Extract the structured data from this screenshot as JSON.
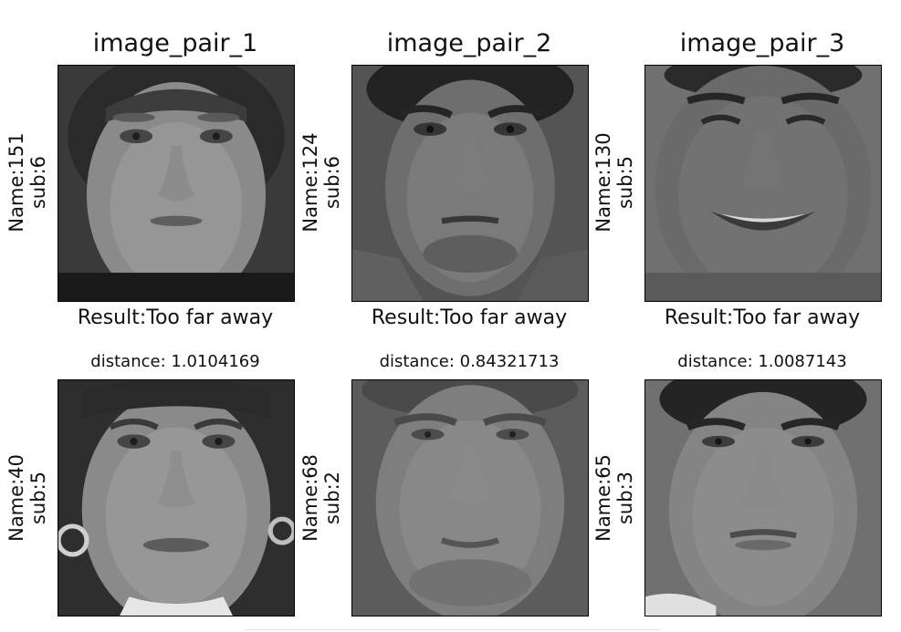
{
  "pairs": [
    {
      "title": "image_pair_1",
      "top": {
        "name": "Name:151",
        "sub": "sub:6",
        "icon": "face-photo-icon"
      },
      "result": "Result:Too far away",
      "distance": "distance: 1.0104169",
      "bottom": {
        "name": "Name:40",
        "sub": "sub:5",
        "icon": "face-photo-icon"
      }
    },
    {
      "title": "image_pair_2",
      "top": {
        "name": "Name:124",
        "sub": "sub:6",
        "icon": "face-photo-icon"
      },
      "result": "Result:Too far away",
      "distance": "distance: 0.84321713",
      "bottom": {
        "name": "Name:68",
        "sub": "sub:2",
        "icon": "face-photo-icon"
      }
    },
    {
      "title": "image_pair_3",
      "top": {
        "name": "Name:130",
        "sub": "sub:5",
        "icon": "face-photo-icon"
      },
      "result": "Result:Too far away",
      "distance": "distance: 1.0087143",
      "bottom": {
        "name": "Name:65",
        "sub": "sub:3",
        "icon": "face-photo-icon"
      }
    }
  ]
}
